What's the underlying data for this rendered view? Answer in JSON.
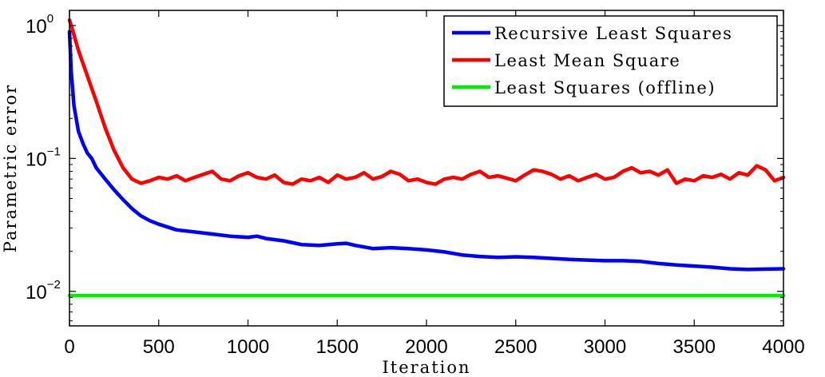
{
  "chart_data": {
    "type": "line",
    "xlabel": "Iteration",
    "ylabel": "Parametric error",
    "xlim": [
      0,
      4000
    ],
    "ylim": [
      0.0055,
      1.3
    ],
    "yscale": "log",
    "grid": false,
    "legend_position": "top-right",
    "x_ticks": [
      "0",
      "500",
      "1000",
      "1500",
      "2000",
      "2500",
      "3000",
      "3500",
      "4000"
    ],
    "y_ticks": [
      {
        "value": 1,
        "base": "10",
        "exp": "0"
      },
      {
        "value": 0.1,
        "base": "10",
        "exp": "−1"
      },
      {
        "value": 0.01,
        "base": "10",
        "exp": "−2"
      }
    ],
    "series": [
      {
        "name": "Recursive Least Squares",
        "color": "#0000ff",
        "points": [
          [
            0,
            0.9
          ],
          [
            10,
            0.45
          ],
          [
            25,
            0.25
          ],
          [
            50,
            0.16
          ],
          [
            75,
            0.13
          ],
          [
            100,
            0.11
          ],
          [
            125,
            0.1
          ],
          [
            150,
            0.085
          ],
          [
            200,
            0.07
          ],
          [
            250,
            0.058
          ],
          [
            300,
            0.049
          ],
          [
            350,
            0.042
          ],
          [
            400,
            0.037
          ],
          [
            450,
            0.034
          ],
          [
            500,
            0.032
          ],
          [
            600,
            0.029
          ],
          [
            700,
            0.028
          ],
          [
            800,
            0.027
          ],
          [
            900,
            0.026
          ],
          [
            1000,
            0.0255
          ],
          [
            1050,
            0.026
          ],
          [
            1100,
            0.025
          ],
          [
            1200,
            0.024
          ],
          [
            1300,
            0.0225
          ],
          [
            1400,
            0.0222
          ],
          [
            1500,
            0.0228
          ],
          [
            1550,
            0.023
          ],
          [
            1600,
            0.0222
          ],
          [
            1700,
            0.021
          ],
          [
            1800,
            0.0213
          ],
          [
            1900,
            0.021
          ],
          [
            2000,
            0.0205
          ],
          [
            2100,
            0.0198
          ],
          [
            2200,
            0.0188
          ],
          [
            2300,
            0.0183
          ],
          [
            2400,
            0.018
          ],
          [
            2500,
            0.0182
          ],
          [
            2600,
            0.018
          ],
          [
            2700,
            0.0177
          ],
          [
            2800,
            0.0174
          ],
          [
            2900,
            0.0172
          ],
          [
            3000,
            0.017
          ],
          [
            3100,
            0.017
          ],
          [
            3200,
            0.0168
          ],
          [
            3300,
            0.0162
          ],
          [
            3400,
            0.0158
          ],
          [
            3500,
            0.0155
          ],
          [
            3600,
            0.0152
          ],
          [
            3700,
            0.0148
          ],
          [
            3800,
            0.0146
          ],
          [
            3900,
            0.0147
          ],
          [
            4000,
            0.0148
          ]
        ]
      },
      {
        "name": "Least Mean Square",
        "color": "#ff0000",
        "points": [
          [
            0,
            1.1
          ],
          [
            20,
            0.9
          ],
          [
            50,
            0.65
          ],
          [
            100,
            0.42
          ],
          [
            150,
            0.27
          ],
          [
            200,
            0.17
          ],
          [
            250,
            0.115
          ],
          [
            300,
            0.085
          ],
          [
            350,
            0.07
          ],
          [
            400,
            0.065
          ],
          [
            450,
            0.068
          ],
          [
            500,
            0.072
          ],
          [
            550,
            0.07
          ],
          [
            600,
            0.074
          ],
          [
            650,
            0.068
          ],
          [
            700,
            0.072
          ],
          [
            750,
            0.076
          ],
          [
            800,
            0.08
          ],
          [
            850,
            0.07
          ],
          [
            900,
            0.068
          ],
          [
            950,
            0.074
          ],
          [
            1000,
            0.078
          ],
          [
            1050,
            0.072
          ],
          [
            1100,
            0.07
          ],
          [
            1150,
            0.075
          ],
          [
            1200,
            0.066
          ],
          [
            1250,
            0.064
          ],
          [
            1300,
            0.07
          ],
          [
            1350,
            0.068
          ],
          [
            1400,
            0.072
          ],
          [
            1450,
            0.066
          ],
          [
            1500,
            0.075
          ],
          [
            1550,
            0.07
          ],
          [
            1600,
            0.072
          ],
          [
            1650,
            0.078
          ],
          [
            1700,
            0.07
          ],
          [
            1750,
            0.073
          ],
          [
            1800,
            0.08
          ],
          [
            1850,
            0.076
          ],
          [
            1900,
            0.068
          ],
          [
            1950,
            0.07
          ],
          [
            2000,
            0.066
          ],
          [
            2050,
            0.064
          ],
          [
            2100,
            0.07
          ],
          [
            2150,
            0.072
          ],
          [
            2200,
            0.07
          ],
          [
            2250,
            0.076
          ],
          [
            2300,
            0.08
          ],
          [
            2350,
            0.072
          ],
          [
            2400,
            0.074
          ],
          [
            2450,
            0.071
          ],
          [
            2500,
            0.068
          ],
          [
            2550,
            0.075
          ],
          [
            2600,
            0.082
          ],
          [
            2650,
            0.08
          ],
          [
            2700,
            0.076
          ],
          [
            2750,
            0.07
          ],
          [
            2800,
            0.074
          ],
          [
            2850,
            0.068
          ],
          [
            2900,
            0.072
          ],
          [
            2950,
            0.076
          ],
          [
            3000,
            0.07
          ],
          [
            3050,
            0.072
          ],
          [
            3100,
            0.08
          ],
          [
            3150,
            0.085
          ],
          [
            3200,
            0.078
          ],
          [
            3250,
            0.08
          ],
          [
            3300,
            0.075
          ],
          [
            3350,
            0.082
          ],
          [
            3400,
            0.065
          ],
          [
            3450,
            0.07
          ],
          [
            3500,
            0.068
          ],
          [
            3550,
            0.074
          ],
          [
            3600,
            0.072
          ],
          [
            3650,
            0.076
          ],
          [
            3700,
            0.07
          ],
          [
            3750,
            0.078
          ],
          [
            3800,
            0.075
          ],
          [
            3850,
            0.088
          ],
          [
            3900,
            0.082
          ],
          [
            3950,
            0.068
          ],
          [
            4000,
            0.072
          ]
        ]
      },
      {
        "name": "Least Squares (offline)",
        "color": "#00ee00",
        "points": [
          [
            0,
            0.0093
          ],
          [
            4000,
            0.0093
          ]
        ]
      }
    ]
  }
}
